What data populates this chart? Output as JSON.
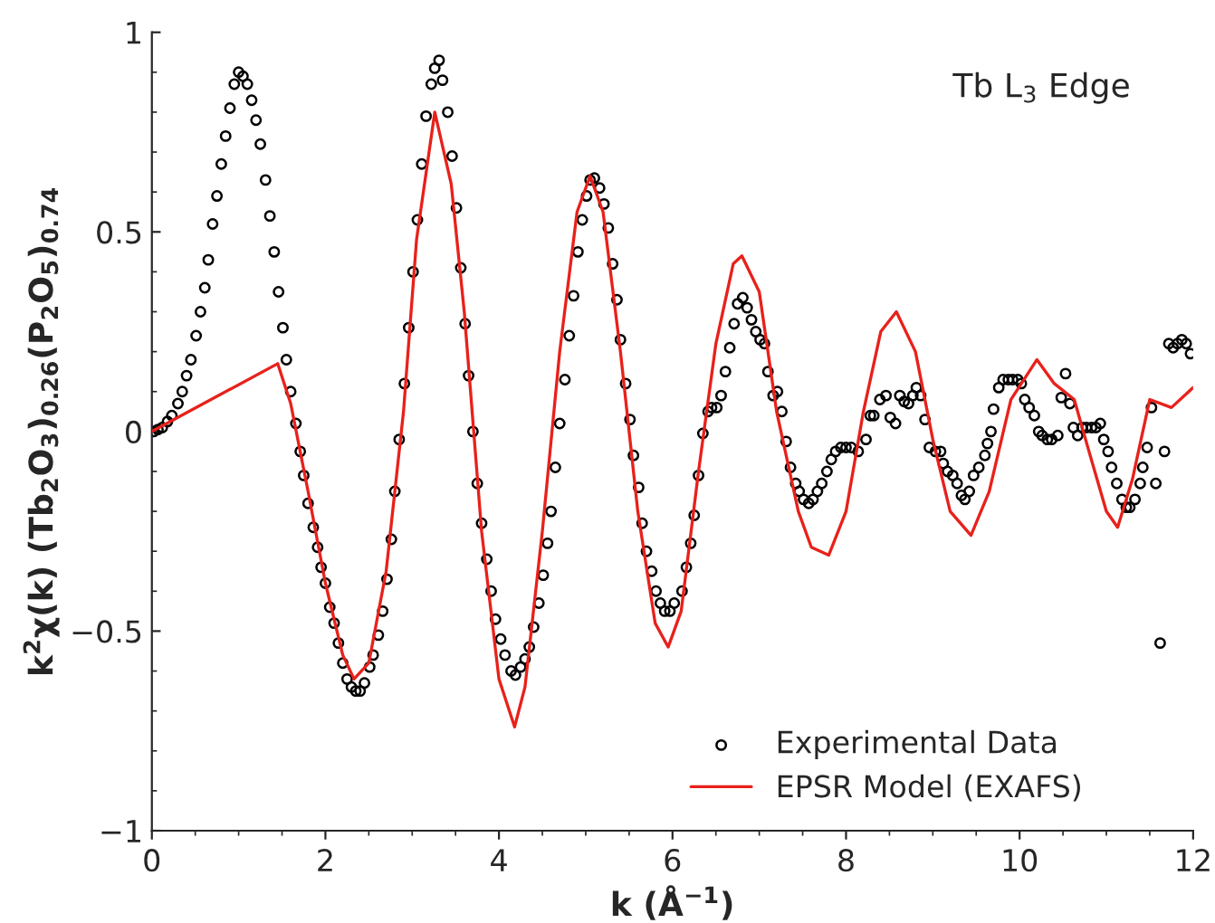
{
  "chart_data": {
    "type": "line",
    "xlabel": "k (Å$^{−1}$)",
    "ylabel": "k$^{2}$χ(k) (Tb$_{2}$O$_{3}$)$_{0.26}$(P$_{2}$O$_{5}$)$_{0.74}$",
    "annotations": [
      "Tb L$_{3}$ Edge"
    ],
    "xlim": [
      0,
      12
    ],
    "xticks": [
      0,
      2,
      4,
      6,
      8,
      10,
      12
    ],
    "ylim": [
      -1,
      1
    ],
    "yticks": [
      {
        "value": -1,
        "label": "−1"
      },
      {
        "value": -0.5,
        "label": "−0.5"
      },
      0,
      0.5,
      1
    ],
    "grid": false,
    "legend": "bottom right",
    "series": [
      {
        "name": "Experimental Data",
        "type": "scatter",
        "marker": "circle",
        "color": "#000000",
        "x": [
          0.02,
          0.07,
          0.12,
          0.18,
          0.23,
          0.3,
          0.35,
          0.4,
          0.45,
          0.51,
          0.56,
          0.61,
          0.65,
          0.7,
          0.75,
          0.8,
          0.85,
          0.9,
          0.95,
          1.0,
          1.05,
          1.1,
          1.15,
          1.2,
          1.25,
          1.31,
          1.36,
          1.41,
          1.46,
          1.51,
          1.55,
          1.6,
          1.66,
          1.71,
          1.75,
          1.8,
          1.86,
          1.91,
          1.95,
          2.0,
          2.05,
          2.1,
          2.15,
          2.2,
          2.25,
          2.3,
          2.35,
          2.4,
          2.45,
          2.51,
          2.55,
          2.61,
          2.66,
          2.71,
          2.76,
          2.8,
          2.85,
          2.91,
          2.96,
          3.01,
          3.06,
          3.11,
          3.16,
          3.22,
          3.26,
          3.31,
          3.35,
          3.41,
          3.46,
          3.51,
          3.56,
          3.61,
          3.65,
          3.7,
          3.75,
          3.8,
          3.86,
          3.91,
          3.96,
          4.02,
          4.07,
          4.14,
          4.19,
          4.25,
          4.3,
          4.35,
          4.4,
          4.46,
          4.51,
          4.56,
          4.6,
          4.65,
          4.7,
          4.76,
          4.81,
          4.86,
          4.91,
          4.96,
          5.01,
          5.05,
          5.1,
          5.16,
          5.21,
          5.26,
          5.31,
          5.36,
          5.4,
          5.46,
          5.51,
          5.55,
          5.61,
          5.65,
          5.7,
          5.76,
          5.81,
          5.86,
          5.91,
          5.97,
          6.02,
          6.11,
          6.16,
          6.21,
          6.25,
          6.3,
          6.35,
          6.41,
          6.45,
          6.51,
          6.56,
          6.61,
          6.66,
          6.71,
          6.75,
          6.81,
          6.86,
          6.91,
          6.96,
          7.01,
          7.06,
          7.1,
          7.16,
          7.21,
          7.26,
          7.31,
          7.36,
          7.42,
          7.46,
          7.51,
          7.57,
          7.62,
          7.67,
          7.72,
          7.78,
          7.83,
          7.88,
          7.94,
          8.0,
          8.06,
          8.14,
          8.23,
          8.28,
          8.32,
          8.39,
          8.46,
          8.51,
          8.57,
          8.62,
          8.67,
          8.72,
          8.77,
          8.81,
          8.86,
          8.91,
          8.96,
          9.03,
          9.09,
          9.12,
          9.17,
          9.23,
          9.28,
          9.33,
          9.37,
          9.42,
          9.47,
          9.53,
          9.6,
          9.63,
          9.67,
          9.7,
          9.76,
          9.81,
          9.87,
          9.92,
          9.98,
          10.02,
          10.06,
          10.11,
          10.17,
          10.22,
          10.26,
          10.32,
          10.37,
          10.44,
          10.48,
          10.53,
          10.58,
          10.62,
          10.67,
          10.72,
          10.77,
          10.83,
          10.88,
          10.93,
          10.97,
          11.02,
          11.06,
          11.12,
          11.18,
          11.23,
          11.27,
          11.33,
          11.39,
          11.42,
          11.47,
          11.52,
          11.57,
          11.62,
          11.67,
          11.72,
          11.77,
          11.82,
          11.87,
          11.92,
          11.97
        ],
        "values": [
          0.0,
          0.005,
          0.01,
          0.025,
          0.04,
          0.07,
          0.1,
          0.14,
          0.18,
          0.24,
          0.3,
          0.36,
          0.43,
          0.52,
          0.59,
          0.67,
          0.74,
          0.81,
          0.87,
          0.9,
          0.89,
          0.87,
          0.83,
          0.78,
          0.72,
          0.63,
          0.54,
          0.45,
          0.35,
          0.26,
          0.18,
          0.1,
          0.02,
          -0.05,
          -0.11,
          -0.18,
          -0.24,
          -0.29,
          -0.34,
          -0.38,
          -0.44,
          -0.48,
          -0.53,
          -0.58,
          -0.62,
          -0.64,
          -0.65,
          -0.65,
          -0.63,
          -0.59,
          -0.56,
          -0.51,
          -0.45,
          -0.37,
          -0.27,
          -0.15,
          -0.02,
          0.12,
          0.26,
          0.4,
          0.53,
          0.67,
          0.79,
          0.87,
          0.91,
          0.93,
          0.88,
          0.8,
          0.69,
          0.56,
          0.41,
          0.27,
          0.14,
          0.0,
          -0.13,
          -0.23,
          -0.32,
          -0.4,
          -0.47,
          -0.52,
          -0.56,
          -0.6,
          -0.61,
          -0.59,
          -0.57,
          -0.54,
          -0.49,
          -0.43,
          -0.36,
          -0.28,
          -0.2,
          -0.09,
          0.02,
          0.13,
          0.24,
          0.34,
          0.45,
          0.53,
          0.59,
          0.63,
          0.635,
          0.61,
          0.57,
          0.51,
          0.42,
          0.33,
          0.23,
          0.12,
          0.03,
          -0.06,
          -0.14,
          -0.23,
          -0.3,
          -0.35,
          -0.4,
          -0.43,
          -0.45,
          -0.45,
          -0.43,
          -0.4,
          -0.34,
          -0.28,
          -0.21,
          -0.11,
          -0.005,
          0.05,
          0.06,
          0.06,
          0.09,
          0.15,
          0.21,
          0.27,
          0.32,
          0.335,
          0.31,
          0.28,
          0.25,
          0.23,
          0.22,
          0.15,
          0.09,
          0.1,
          0.05,
          -0.025,
          -0.09,
          -0.13,
          -0.15,
          -0.17,
          -0.18,
          -0.17,
          -0.15,
          -0.13,
          -0.1,
          -0.07,
          -0.05,
          -0.04,
          -0.04,
          -0.04,
          -0.05,
          -0.02,
          0.04,
          0.04,
          0.08,
          0.09,
          0.035,
          0.02,
          0.09,
          0.075,
          0.07,
          0.09,
          0.11,
          0.09,
          0.03,
          -0.04,
          -0.05,
          -0.05,
          -0.08,
          -0.1,
          -0.11,
          -0.13,
          -0.16,
          -0.17,
          -0.15,
          -0.11,
          -0.09,
          -0.06,
          -0.03,
          0.0,
          0.056,
          0.11,
          0.13,
          0.13,
          0.13,
          0.13,
          0.12,
          0.08,
          0.06,
          0.04,
          0.0,
          -0.01,
          -0.02,
          -0.02,
          -0.01,
          0.085,
          0.145,
          0.07,
          0.01,
          -0.01,
          0.01,
          0.01,
          0.01,
          0.01,
          0.02,
          -0.02,
          -0.05,
          -0.09,
          -0.13,
          -0.17,
          -0.19,
          -0.19,
          -0.17,
          -0.13,
          -0.09,
          -0.04,
          0.06,
          -0.13,
          -0.53,
          -0.05,
          0.22,
          0.21,
          0.22,
          0.23,
          0.22,
          0.195
        ]
      },
      {
        "name": "EPSR Model (EXAFS)",
        "color": "#e8211b",
        "x": [
          0,
          1.45,
          1.6,
          1.8,
          2.0,
          2.2,
          2.33,
          2.5,
          2.7,
          2.9,
          3.05,
          3.26,
          3.45,
          3.6,
          3.8,
          4.0,
          4.18,
          4.3,
          4.5,
          4.7,
          4.9,
          5.05,
          5.2,
          5.4,
          5.6,
          5.8,
          5.95,
          6.1,
          6.3,
          6.5,
          6.7,
          6.8,
          7.0,
          7.2,
          7.45,
          7.6,
          7.8,
          8.0,
          8.2,
          8.4,
          8.58,
          8.8,
          9.0,
          9.2,
          9.44,
          9.65,
          9.9,
          10.2,
          10.4,
          10.63,
          10.8,
          11.0,
          11.13,
          11.3,
          11.5,
          11.75,
          12
        ],
        "values": [
          0,
          0.17,
          0.07,
          -0.15,
          -0.38,
          -0.56,
          -0.62,
          -0.58,
          -0.35,
          0.05,
          0.48,
          0.8,
          0.62,
          0.3,
          -0.25,
          -0.62,
          -0.74,
          -0.64,
          -0.25,
          0.2,
          0.55,
          0.64,
          0.55,
          0.2,
          -0.2,
          -0.48,
          -0.54,
          -0.45,
          -0.1,
          0.22,
          0.42,
          0.44,
          0.35,
          0.05,
          -0.2,
          -0.29,
          -0.31,
          -0.2,
          0.05,
          0.25,
          0.3,
          0.2,
          -0.02,
          -0.2,
          -0.26,
          -0.15,
          0.08,
          0.18,
          0.12,
          0.08,
          -0.05,
          -0.2,
          -0.24,
          -0.12,
          0.08,
          0.06,
          0.11
        ]
      }
    ]
  }
}
